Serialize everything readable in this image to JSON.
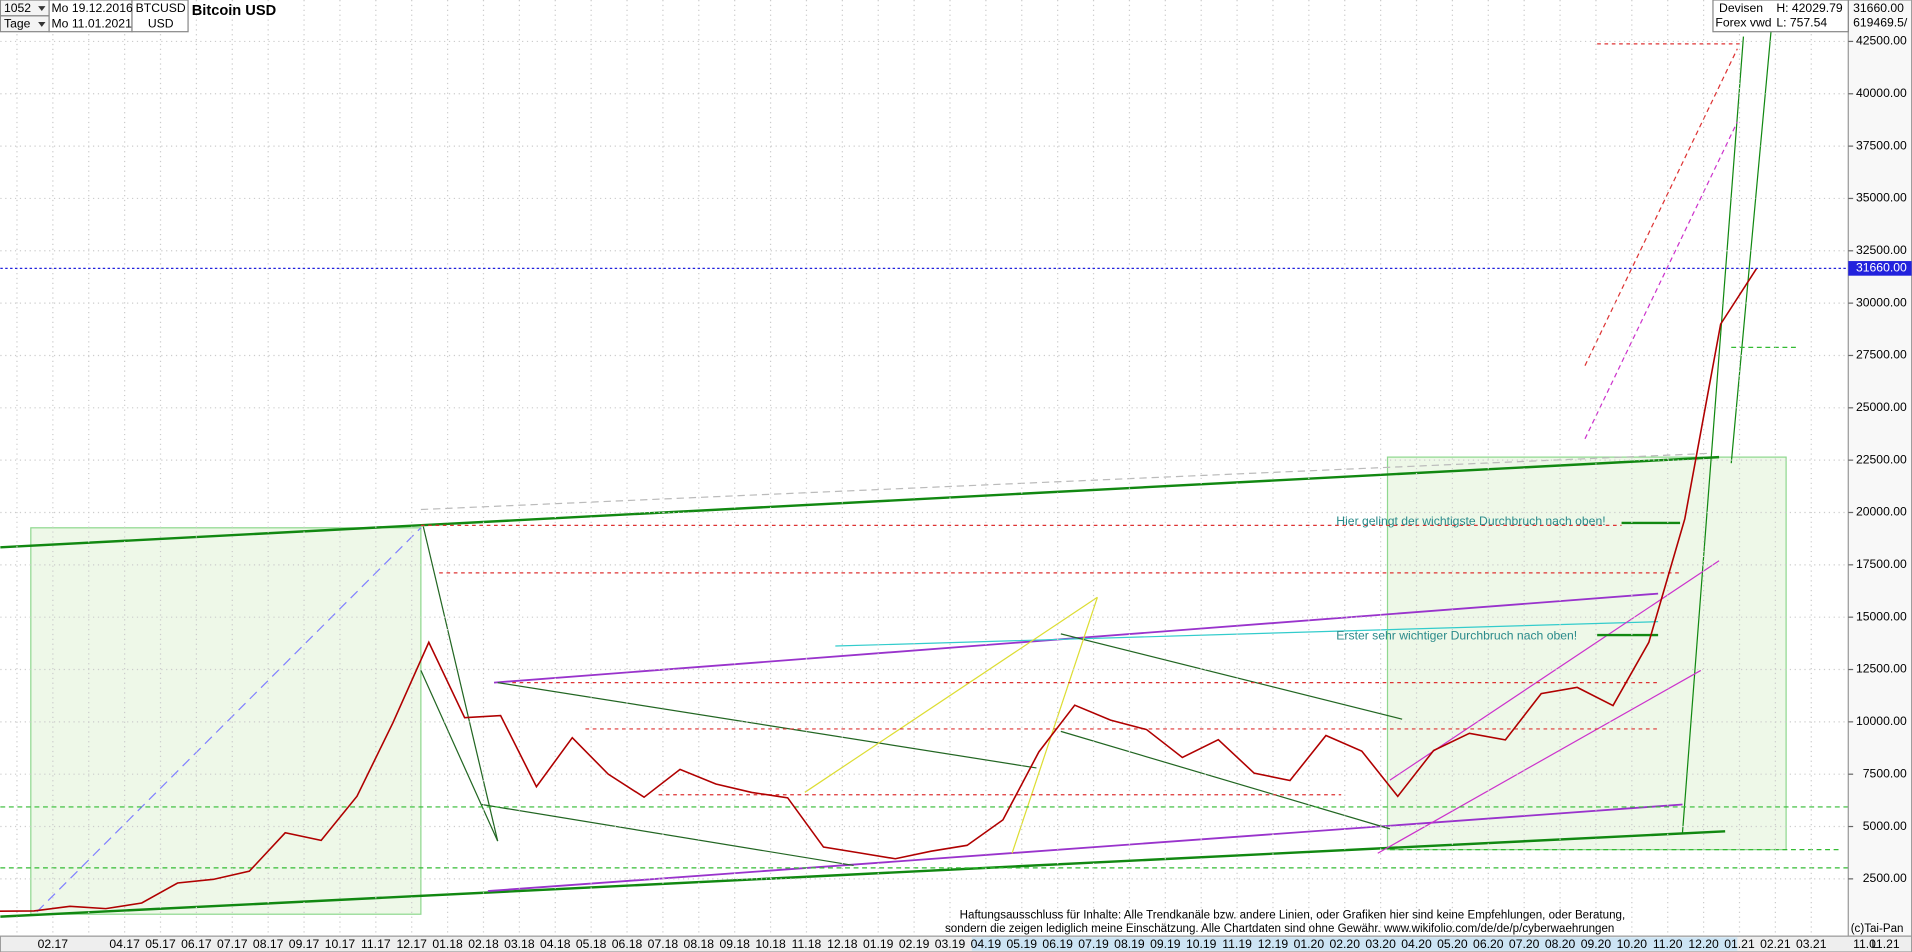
{
  "header": {
    "bar_count": "1052",
    "period": "Tage",
    "start": "Mo 19.12.2016",
    "end": "Mo 11.01.2021",
    "symbol": "BTCUSD",
    "currency": "USD",
    "market": "Devisen",
    "source": "Forex vwd",
    "high": "H: 42029.79",
    "low": "L: 757.54",
    "axis_top": "31660.00",
    "axis_top2": "619469.5/",
    "scale_mode": "L"
  },
  "chart_data": {
    "type": "line",
    "title": "Bitcoin USD",
    "x": [
      null,
      null,
      "02.17",
      null,
      "04.17",
      "05.17",
      "06.17",
      "07.17",
      "08.17",
      "09.17",
      "10.17",
      "11.17",
      "12.17",
      "01.18",
      "02.18",
      "03.18",
      "04.18",
      "05.18",
      "06.18",
      "07.18",
      "08.18",
      "09.18",
      "10.18",
      "11.18",
      "12.18",
      "01.19",
      "02.19",
      "03.19",
      "04.19",
      "05.19",
      "06.19",
      "07.19",
      "08.19",
      "09.19",
      "10.19",
      "11.19",
      "12.19",
      "01.20",
      "02.20",
      "03.20",
      "04.20",
      "05.20",
      "06.20",
      "07.20",
      "08.20",
      "09.20",
      "10.20",
      "11.20",
      "12.20",
      "01.21",
      "02.21",
      "03.21"
    ],
    "values": [
      960,
      970,
      1190,
      1080,
      1350,
      2300,
      2480,
      2870,
      4700,
      4340,
      6450,
      9950,
      13800,
      10200,
      10300,
      6900,
      9240,
      7500,
      6400,
      7730,
      7030,
      6630,
      6370,
      4020,
      3740,
      3460,
      3820,
      4100,
      5320,
      8570,
      10800,
      10080,
      9630,
      8300,
      9150,
      7550,
      7200,
      9350,
      8600,
      6440,
      8630,
      9450,
      9140,
      11350,
      11650,
      10780,
      13800,
      19700,
      29000,
      31660,
      null,
      null
    ],
    "color": "#b00000",
    "ylim": [
      -236,
      44479
    ],
    "yticks": [
      {
        "value": 2500,
        "label": "2500.00"
      },
      {
        "value": 5000,
        "label": "5000.00"
      },
      {
        "value": 7500,
        "label": "7500.00"
      },
      {
        "value": 10000,
        "label": "10000.00"
      },
      {
        "value": 12500,
        "label": "12500.00"
      },
      {
        "value": 15000,
        "label": "15000.00"
      },
      {
        "value": 17500,
        "label": "17500.00"
      },
      {
        "value": 20000,
        "label": "20000.00"
      },
      {
        "value": 22500,
        "label": "22500.00"
      },
      {
        "value": 25000,
        "label": "25000.00"
      },
      {
        "value": 27500,
        "label": "27500.00"
      },
      {
        "value": 30000,
        "label": "30000.00"
      },
      {
        "value": 32500,
        "label": "32500.00"
      },
      {
        "value": 35000,
        "label": "35000.00"
      },
      {
        "value": 37500,
        "label": "37500.00"
      },
      {
        "value": 40000,
        "label": "40000.00"
      },
      {
        "value": 42500,
        "label": "42500.00"
      }
    ],
    "grid": true,
    "last_price": {
      "value": 31660,
      "label": "31660.00"
    },
    "end_label": "11.01.21",
    "annotations": [
      "Hier gelingt der wichtigste Durchbruch nach oben!",
      "Erster sehr wichtiger Durchbruch nach oben!"
    ],
    "disclaimer": [
      "Haftungsausschluss für Inhalte: Alle Trendkanäle bzw. andere Linien, oder Grafiken hier sind keine Empfehlungen, oder Beratung,",
      "sondern die zeigen lediglich meine  Einschätzung. Alle Chartdaten sind ohne Gewähr.  www.wikifolio.com/de/de/p/cyberwaehrungen"
    ],
    "copyright": "(c)Tai-Pan"
  }
}
